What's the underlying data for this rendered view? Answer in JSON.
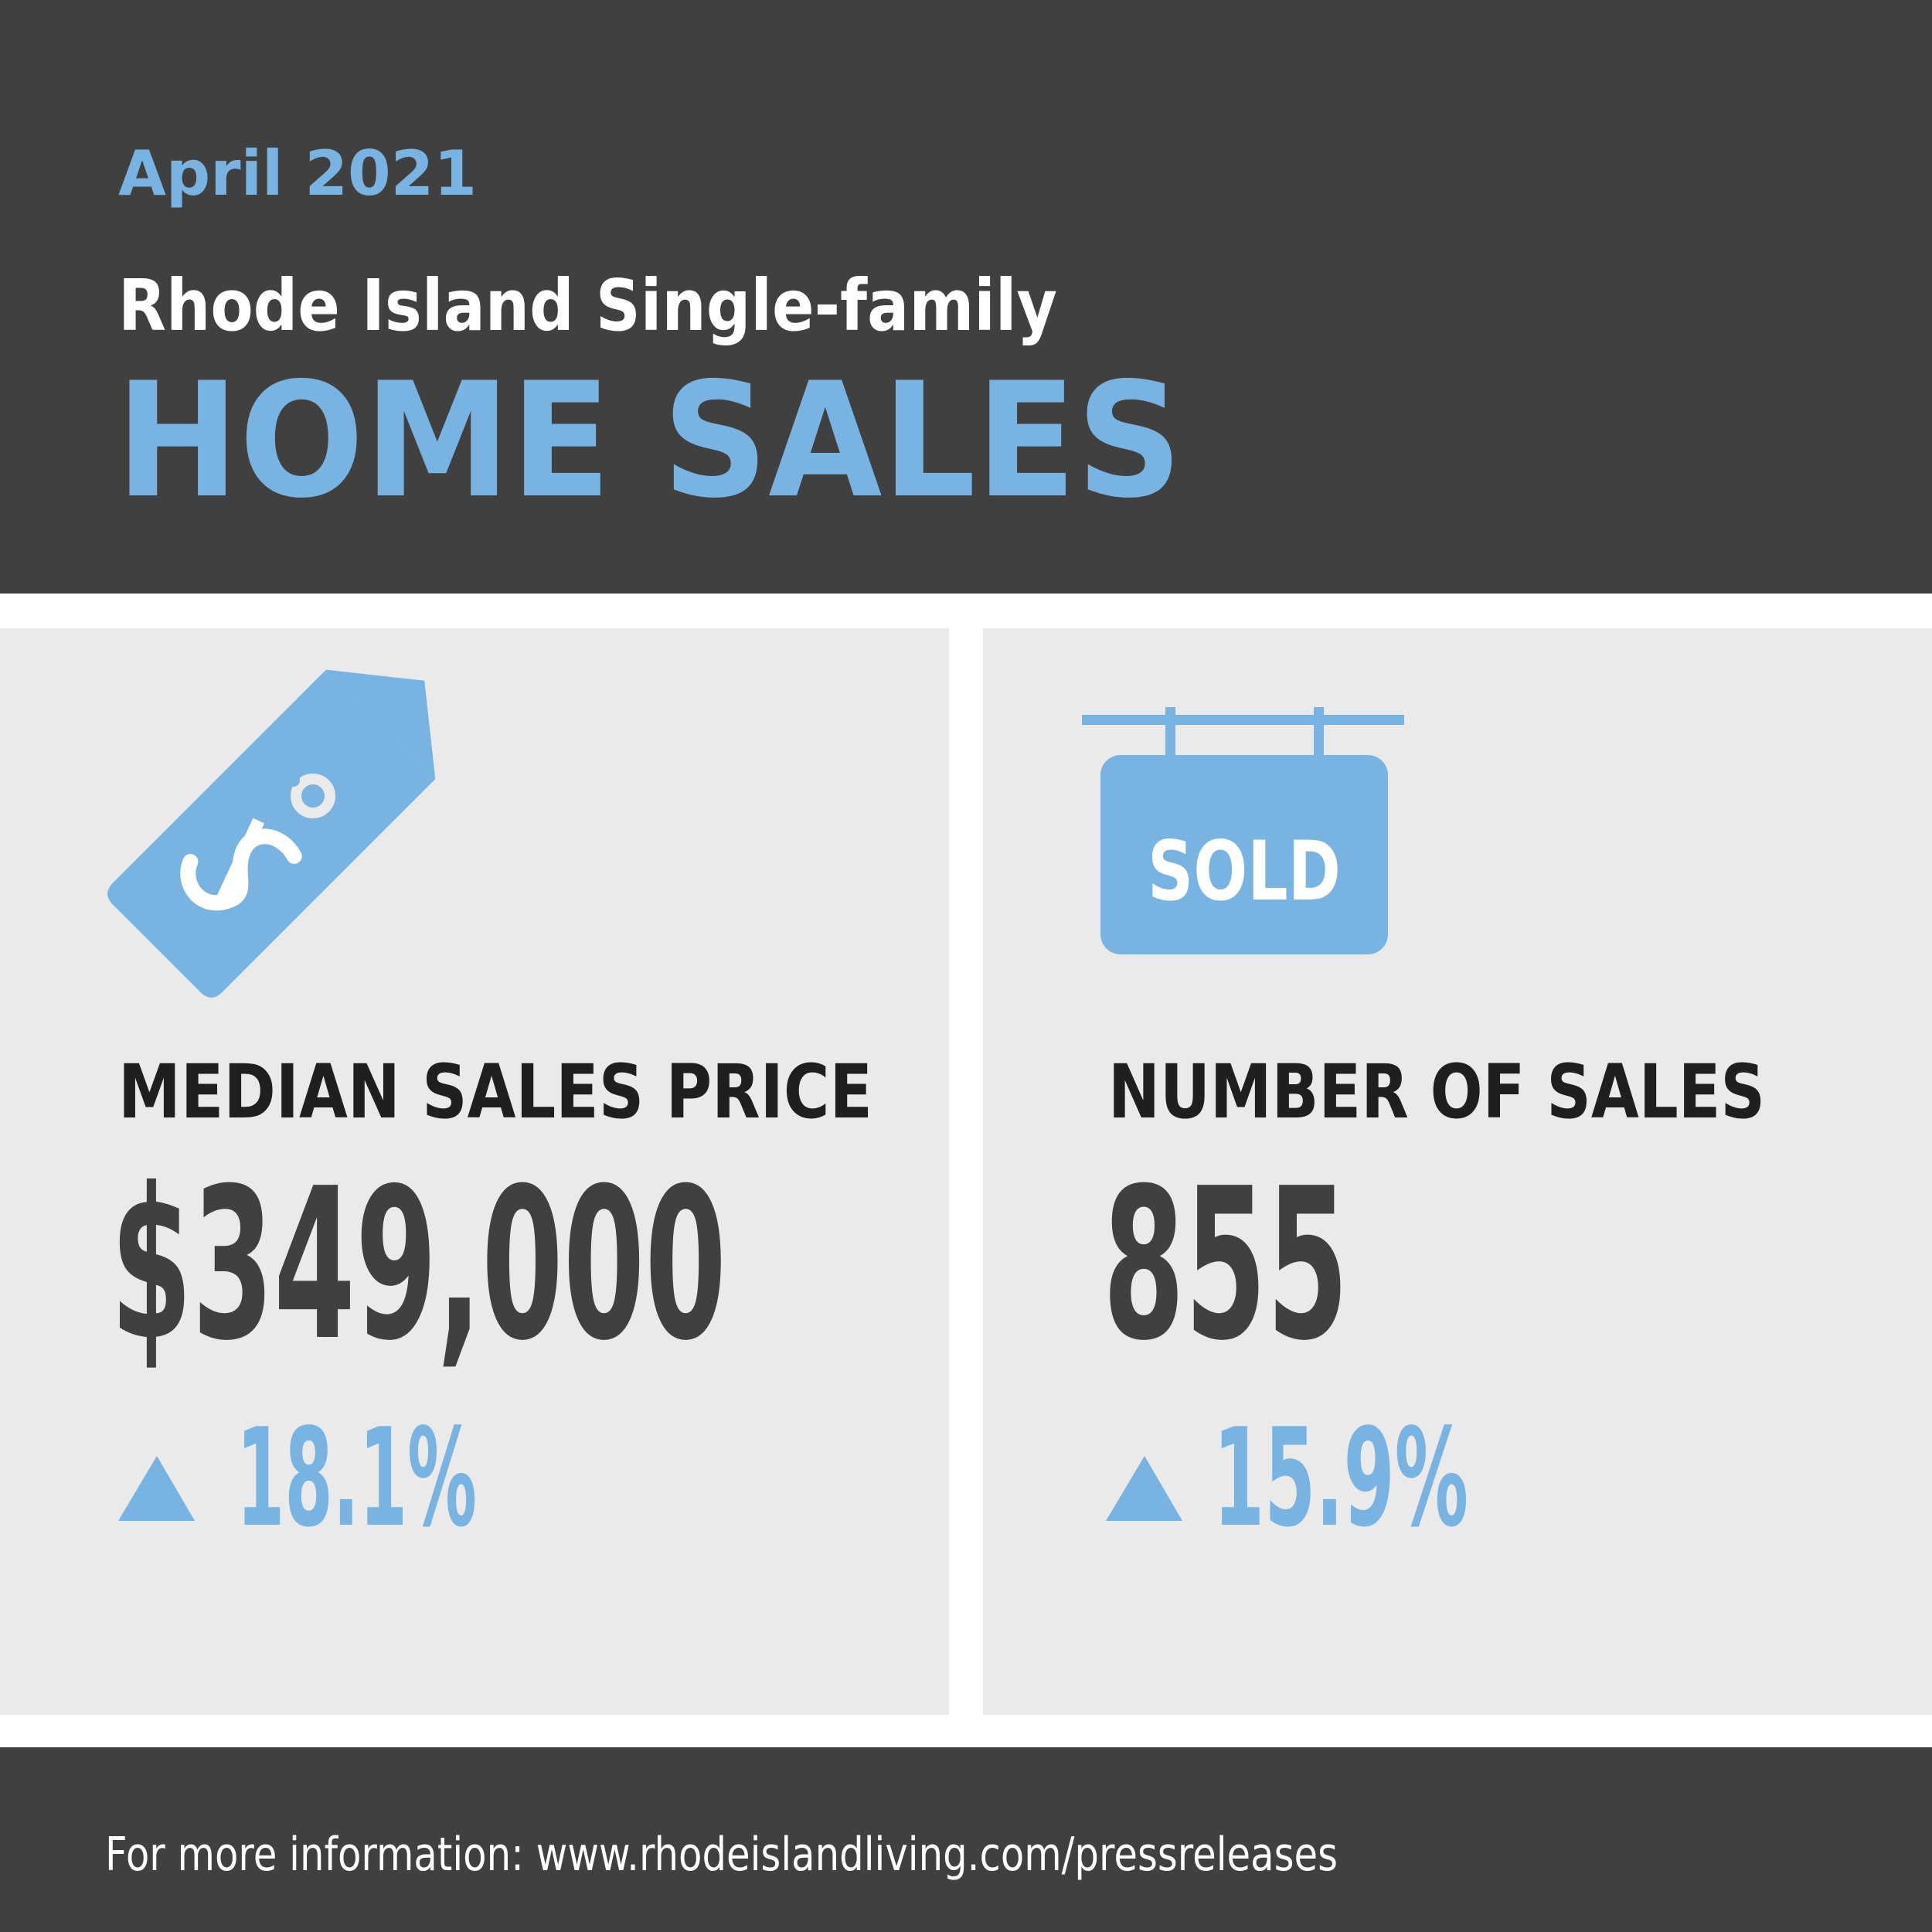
{
  "header": {
    "date": "April 2021",
    "subtitle": "Rhode Island Single-family",
    "title": "HOME SALES"
  },
  "stats": [
    {
      "label": "MEDIAN SALES PRICE",
      "value": "$349,000",
      "change": "18.1%"
    },
    {
      "label": "NUMBER OF SALES",
      "value": "855",
      "change": "15.9%",
      "sign": "SOLD"
    }
  ],
  "footer": "For more information: www.rhodeislandliving.com/pressreleases"
}
